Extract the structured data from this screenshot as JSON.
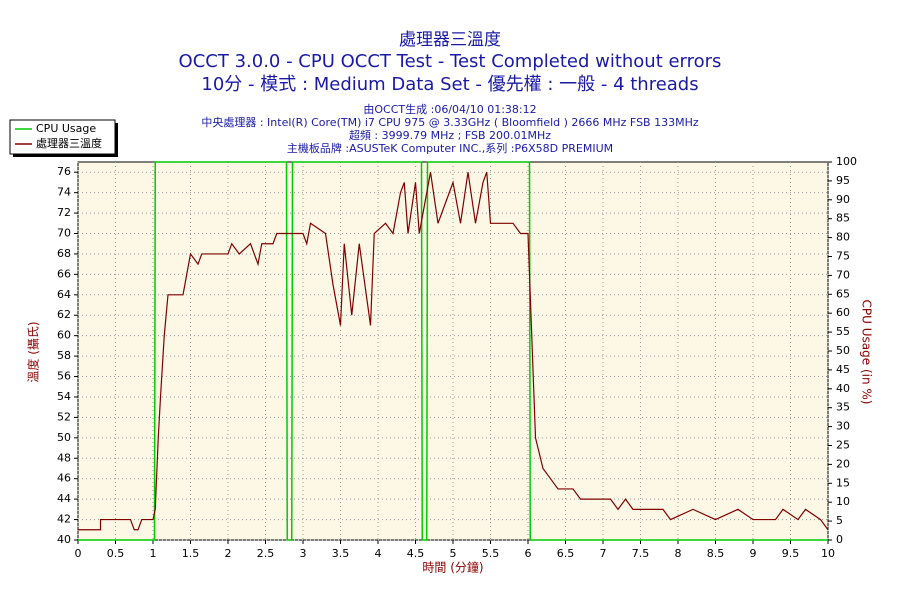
{
  "chart_data": {
    "type": "line",
    "title": "處理器三溫度",
    "subtitle": [
      "OCCT 3.0.0 - CPU OCCT Test - Test Completed without errors",
      "10分 - 模式 : Medium Data Set - 優先權 : 一般 - 4 threads"
    ],
    "info": [
      "由OCCT生成 :06/04/10 01:38:12",
      "中央處理器 : Intel(R) Core(TM) i7 CPU 975 @ 3.33GHz ( Bloomfield ) 2666 MHz FSB 133MHz",
      "超頻 : 3999.79 MHz ; FSB 200.01MHz",
      "主機板品牌 :ASUSTeK Computer INC.,系列 :P6X58D PREMIUM"
    ],
    "x_label": "時間 (分鐘)",
    "y_label": "溫度 (攝氏)",
    "y2_label": "CPU Usage (in %)",
    "xlim": [
      0,
      10
    ],
    "xticks": [
      0,
      0.5,
      1,
      1.5,
      2,
      2.5,
      3,
      3.5,
      4,
      4.5,
      5,
      5.5,
      6,
      6.5,
      7,
      7.5,
      8,
      8.5,
      9,
      9.5,
      10
    ],
    "ylim": [
      40,
      77
    ],
    "yticks": [
      40,
      42,
      44,
      46,
      48,
      50,
      52,
      54,
      56,
      58,
      60,
      62,
      64,
      66,
      68,
      70,
      72,
      74,
      76
    ],
    "y2lim": [
      0,
      100
    ],
    "y2ticks": [
      0,
      5,
      10,
      15,
      20,
      25,
      30,
      35,
      40,
      45,
      50,
      55,
      60,
      65,
      70,
      75,
      80,
      85,
      90,
      95,
      100
    ],
    "grid": true,
    "legend": "top-left",
    "series": [
      {
        "name": "CPU Usage",
        "color": "#00cc00",
        "axis": "y2",
        "x": [
          0,
          1.02,
          1.03,
          2.78,
          2.79,
          2.85,
          2.86,
          4.58,
          4.59,
          4.65,
          4.66,
          6.02,
          6.03,
          10
        ],
        "values": [
          0,
          0,
          100,
          100,
          0,
          0,
          100,
          100,
          0,
          0,
          100,
          100,
          0,
          0
        ]
      },
      {
        "name": "處理器三溫度",
        "color": "#800000",
        "x": [
          0,
          0.3,
          0.3,
          0.7,
          0.75,
          0.8,
          0.85,
          1.0,
          1.03,
          1.07,
          1.1,
          1.15,
          1.2,
          1.4,
          1.45,
          1.5,
          1.6,
          1.65,
          2.0,
          2.05,
          2.15,
          2.3,
          2.4,
          2.45,
          2.6,
          2.65,
          3.0,
          3.05,
          3.1,
          3.3,
          3.4,
          3.5,
          3.55,
          3.65,
          3.75,
          3.9,
          3.95,
          4.1,
          4.2,
          4.3,
          4.35,
          4.4,
          4.5,
          4.55,
          4.7,
          4.8,
          4.9,
          5.0,
          5.1,
          5.2,
          5.3,
          5.4,
          5.45,
          5.5,
          5.8,
          5.9,
          6.0,
          6.05,
          6.1,
          6.2,
          6.3,
          6.4,
          6.6,
          6.7,
          7.1,
          7.2,
          7.3,
          7.4,
          7.8,
          7.9,
          8.2,
          8.5,
          8.8,
          9.0,
          9.3,
          9.4,
          9.6,
          9.7,
          9.9,
          10
        ],
        "values": [
          41,
          41,
          42,
          42,
          41,
          41,
          42,
          42,
          43,
          50,
          54,
          60,
          64,
          64,
          66,
          68,
          67,
          68,
          68,
          69,
          68,
          69,
          67,
          69,
          69,
          70,
          70,
          69,
          71,
          70,
          65,
          61,
          69,
          62,
          69,
          61,
          70,
          71,
          70,
          74,
          75,
          70,
          75,
          70,
          76,
          71,
          73,
          75,
          71,
          76,
          71,
          75,
          76,
          71,
          71,
          70,
          70,
          60,
          50,
          47,
          46,
          45,
          45,
          44,
          44,
          43,
          44,
          43,
          43,
          42,
          43,
          42,
          43,
          42,
          42,
          43,
          42,
          43,
          42,
          41
        ]
      }
    ]
  }
}
